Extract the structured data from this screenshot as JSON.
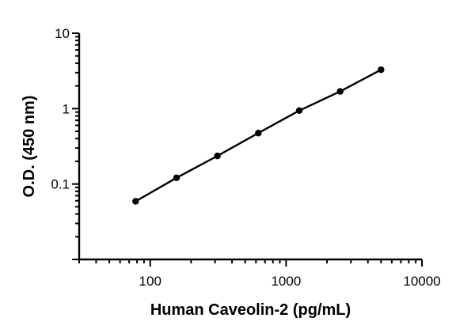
{
  "chart_data": {
    "type": "scatter",
    "title": "",
    "xlabel": "Human Caveolin-2 (pg/mL)",
    "ylabel": "O.D. (450 nm)",
    "x_scale": "log",
    "y_scale": "log",
    "xlim": [
      30,
      10000
    ],
    "ylim": [
      0.01,
      10
    ],
    "x_ticks": [
      100,
      1000,
      10000
    ],
    "x_tick_labels": [
      "100",
      "1000",
      "10000"
    ],
    "y_ticks": [
      0.1,
      1,
      10
    ],
    "y_tick_labels": [
      "0.1",
      "1",
      "10"
    ],
    "grid": false,
    "legend": "none",
    "fit_line": true,
    "series": [
      {
        "x": [
          78.1,
          156.25,
          312.5,
          625,
          1250,
          2500,
          5000
        ],
        "y": [
          0.059,
          0.121,
          0.236,
          0.474,
          0.942,
          1.69,
          3.28
        ]
      }
    ]
  }
}
